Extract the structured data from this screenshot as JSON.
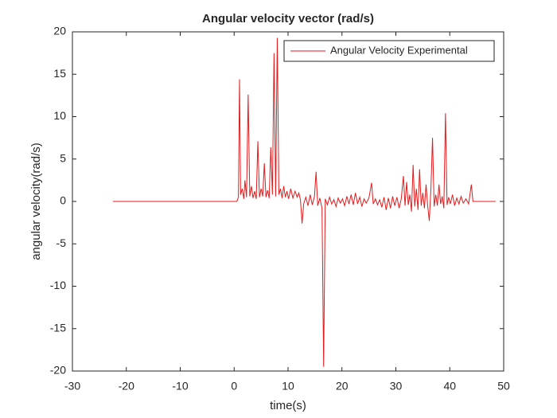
{
  "chart_data": {
    "type": "line",
    "title": "Angular velocity vector (rad/s)",
    "xlabel": "time(s)",
    "ylabel": "angular velocity(rad/s)",
    "x": [
      -22.5,
      0.5,
      0.8,
      1.0,
      1.2,
      1.5,
      1.8,
      2.0,
      2.3,
      2.6,
      2.9,
      3.2,
      3.5,
      3.8,
      4.1,
      4.4,
      4.7,
      5.0,
      5.3,
      5.6,
      5.9,
      6.2,
      6.5,
      6.8,
      7.1,
      7.4,
      7.7,
      8.0,
      8.3,
      8.6,
      8.9,
      9.2,
      9.5,
      9.8,
      10.1,
      10.5,
      10.9,
      11.3,
      11.7,
      12.0,
      12.3,
      12.6,
      12.9,
      13.3,
      13.7,
      14.1,
      14.5,
      14.9,
      15.2,
      15.5,
      15.9,
      16.3,
      16.6,
      16.9,
      17.3,
      17.7,
      18.1,
      18.5,
      18.9,
      19.3,
      19.7,
      20.1,
      20.5,
      20.9,
      21.3,
      21.7,
      22.1,
      22.5,
      22.9,
      23.3,
      23.7,
      24.1,
      24.5,
      25.0,
      25.5,
      25.8,
      26.2,
      26.6,
      27.0,
      27.4,
      27.8,
      28.2,
      28.6,
      29.0,
      29.4,
      29.8,
      30.2,
      30.6,
      31.0,
      31.4,
      31.7,
      32.0,
      32.3,
      32.6,
      32.9,
      33.2,
      33.5,
      33.8,
      34.1,
      34.4,
      34.7,
      35.0,
      35.3,
      35.6,
      35.9,
      36.2,
      36.5,
      36.8,
      37.1,
      37.4,
      37.7,
      38.0,
      38.3,
      38.6,
      38.9,
      39.2,
      39.5,
      39.8,
      40.1,
      40.5,
      40.9,
      41.3,
      41.7,
      42.1,
      42.5,
      43.0,
      43.5,
      44.0,
      44.3,
      48.5
    ],
    "series": [
      {
        "name": "Angular Velocity Experimental",
        "color": "#e41a1c",
        "values": [
          0,
          0,
          0.5,
          14.4,
          0.8,
          1.5,
          0.3,
          2.5,
          0.5,
          12.6,
          0.6,
          1.8,
          0.4,
          1.2,
          0.3,
          7.1,
          0.5,
          1.5,
          0.6,
          4.5,
          0.5,
          1.3,
          0.4,
          6.4,
          0.8,
          17.5,
          0.6,
          19.3,
          0.8,
          1.5,
          0.4,
          1.8,
          0.5,
          1.2,
          0.3,
          1.5,
          0.4,
          1.2,
          0.5,
          1.0,
          0.2,
          -2.6,
          -0.3,
          0.5,
          -0.5,
          0.8,
          -0.4,
          0.6,
          3.5,
          -0.5,
          0.4,
          -0.8,
          -19.5,
          0.3,
          -0.4,
          0.5,
          -0.3,
          0.2,
          -0.6,
          0.4,
          -0.2,
          0.3,
          -0.5,
          0.6,
          -0.3,
          0.8,
          -0.4,
          1.0,
          -0.3,
          0.5,
          -0.6,
          0.3,
          -0.2,
          0.4,
          2.2,
          -0.3,
          0.3,
          -0.4,
          0.2,
          -0.7,
          0.5,
          -1.0,
          0.4,
          -0.8,
          0.6,
          -0.5,
          0.5,
          -0.8,
          0.3,
          3.0,
          -0.5,
          2.3,
          -0.4,
          0.8,
          -1.2,
          4.3,
          -0.6,
          1.5,
          -1.0,
          3.8,
          -0.5,
          1.0,
          -0.8,
          2.0,
          -0.5,
          -2.3,
          1.5,
          7.5,
          -0.6,
          0.8,
          -0.5,
          2.0,
          -0.3,
          0.6,
          -0.8,
          10.4,
          -0.4,
          0.5,
          -0.3,
          0.8,
          -0.5,
          0.4,
          -0.3,
          0.6,
          -0.2,
          0.3,
          -0.3,
          2.0,
          0,
          0
        ]
      }
    ],
    "xlim": [
      -30,
      50
    ],
    "ylim": [
      -20,
      20
    ],
    "xticks": [
      -30,
      -20,
      -10,
      0,
      10,
      20,
      30,
      40,
      50
    ],
    "yticks": [
      -20,
      -15,
      -10,
      -5,
      0,
      5,
      10,
      15,
      20
    ],
    "grid": false,
    "legend": "upper-right"
  }
}
